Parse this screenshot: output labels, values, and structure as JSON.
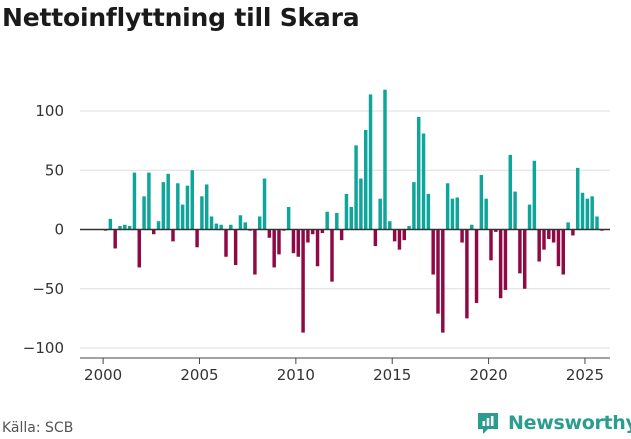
{
  "title": "Nettoinflyttning till Skara",
  "source": "Källa: SCB",
  "brand": {
    "name": "Newsworthy",
    "icon": "newsworthy-logo-icon"
  },
  "colors": {
    "positive": "#0ea59a",
    "negative": "#8f0a45",
    "grid": "#dddddd",
    "zero_line": "#333333",
    "brand": "#2a9d8f"
  },
  "chart_data": {
    "type": "bar",
    "title": "Nettoinflyttning till Skara",
    "xlabel": "",
    "ylabel": "",
    "frequency": "quarterly",
    "start": "2000 Q1",
    "x_range": [
      1998.8,
      2026.3
    ],
    "ylim": [
      -100,
      120
    ],
    "yticks": [
      -100,
      -50,
      0,
      50,
      100
    ],
    "ytick_labels": [
      "−100",
      "−50",
      "0",
      "50",
      "100"
    ],
    "xticks": [
      2000,
      2005,
      2010,
      2015,
      2020,
      2025
    ],
    "xtick_labels": [
      "2000",
      "2005",
      "2010",
      "2015",
      "2020",
      "2025"
    ],
    "grid": true,
    "values": [
      -1,
      9,
      -16,
      3,
      4,
      3,
      48,
      -32,
      28,
      48,
      -4,
      7,
      40,
      47,
      -10,
      39,
      21,
      37,
      50,
      -15,
      28,
      38,
      11,
      5,
      4,
      -23,
      4,
      -30,
      12,
      6,
      -1,
      -38,
      11,
      43,
      -7,
      -32,
      -21,
      -1,
      19,
      -20,
      -23,
      -87,
      -11,
      -4,
      -31,
      -3,
      15,
      -44,
      14,
      -9,
      30,
      19,
      71,
      43,
      84,
      114,
      -14,
      26,
      118,
      7,
      -10,
      -17,
      -9,
      3,
      40,
      95,
      81,
      30,
      -38,
      -71,
      -87,
      39,
      26,
      27,
      -11,
      -75,
      4,
      -62,
      46,
      26,
      -26,
      -2,
      -58,
      -51,
      63,
      32,
      -37,
      -50,
      21,
      58,
      -27,
      -17,
      -8,
      -11,
      -31,
      -38,
      6,
      -5,
      52,
      31,
      26,
      28,
      11,
      -1
    ]
  }
}
